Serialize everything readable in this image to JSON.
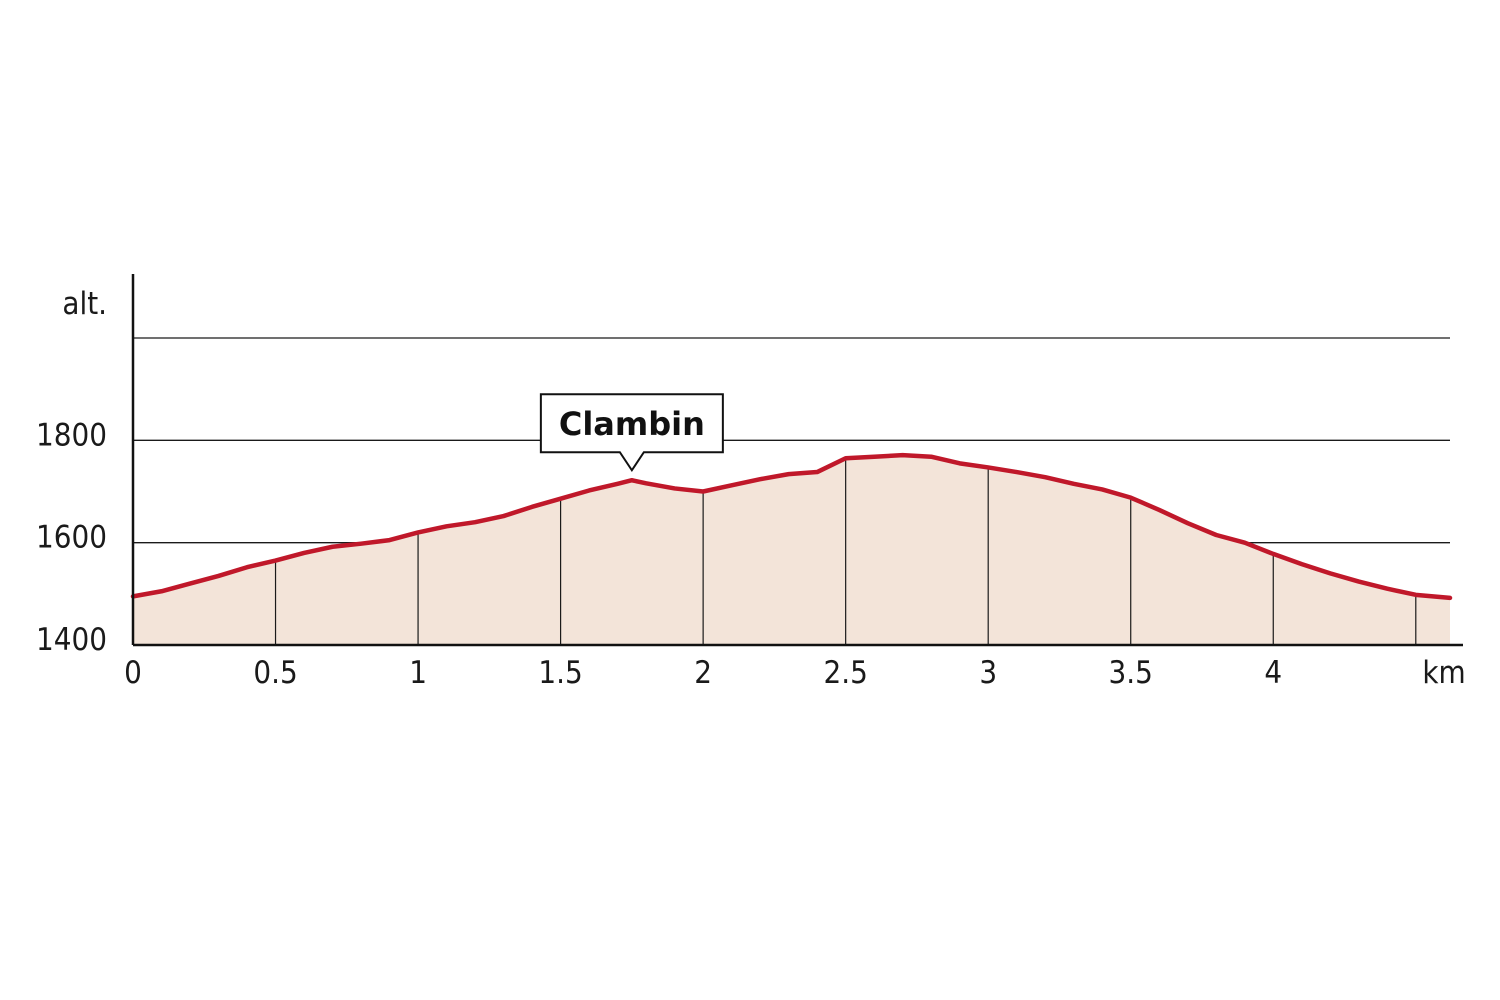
{
  "chart_data": {
    "type": "area",
    "ylabel": "alt.",
    "xlabel": "km",
    "xlim": [
      0,
      4.62
    ],
    "ylim": [
      1400,
      2000
    ],
    "x_ticks": [
      0,
      0.5,
      1,
      1.5,
      2,
      2.5,
      3,
      3.5,
      4
    ],
    "x_tick_labels": [
      "0",
      "0.5",
      "1",
      "1.5",
      "2",
      "2.5",
      "3",
      "3.5",
      "4"
    ],
    "y_ticks": [
      1400,
      1600,
      1800
    ],
    "y_tick_labels": [
      "1400",
      "1600",
      "1800"
    ],
    "gridlines_y": [
      1600,
      1800,
      2000
    ],
    "grid": true,
    "x": [
      0,
      0.1,
      0.2,
      0.3,
      0.4,
      0.5,
      0.6,
      0.7,
      0.8,
      0.9,
      1.0,
      1.1,
      1.2,
      1.3,
      1.4,
      1.5,
      1.6,
      1.7,
      1.75,
      1.8,
      1.9,
      2.0,
      2.1,
      2.2,
      2.3,
      2.4,
      2.5,
      2.6,
      2.7,
      2.8,
      2.9,
      3.0,
      3.1,
      3.2,
      3.3,
      3.4,
      3.5,
      3.6,
      3.7,
      3.8,
      3.9,
      4.0,
      4.1,
      4.2,
      4.3,
      4.4,
      4.5,
      4.62
    ],
    "y": [
      1495,
      1505,
      1520,
      1535,
      1552,
      1565,
      1580,
      1592,
      1598,
      1605,
      1620,
      1632,
      1640,
      1652,
      1670,
      1686,
      1702,
      1715,
      1722,
      1716,
      1706,
      1700,
      1712,
      1724,
      1734,
      1738,
      1765,
      1768,
      1771,
      1768,
      1755,
      1747,
      1738,
      1728,
      1715,
      1704,
      1688,
      1664,
      1638,
      1615,
      1600,
      1578,
      1558,
      1540,
      1524,
      1510,
      1498,
      1492
    ],
    "line_color": "#c0182a",
    "fill_color": "#f3e4d9",
    "annotations": [
      {
        "label": "Clambin",
        "x": 1.75,
        "y": 1722
      }
    ]
  }
}
